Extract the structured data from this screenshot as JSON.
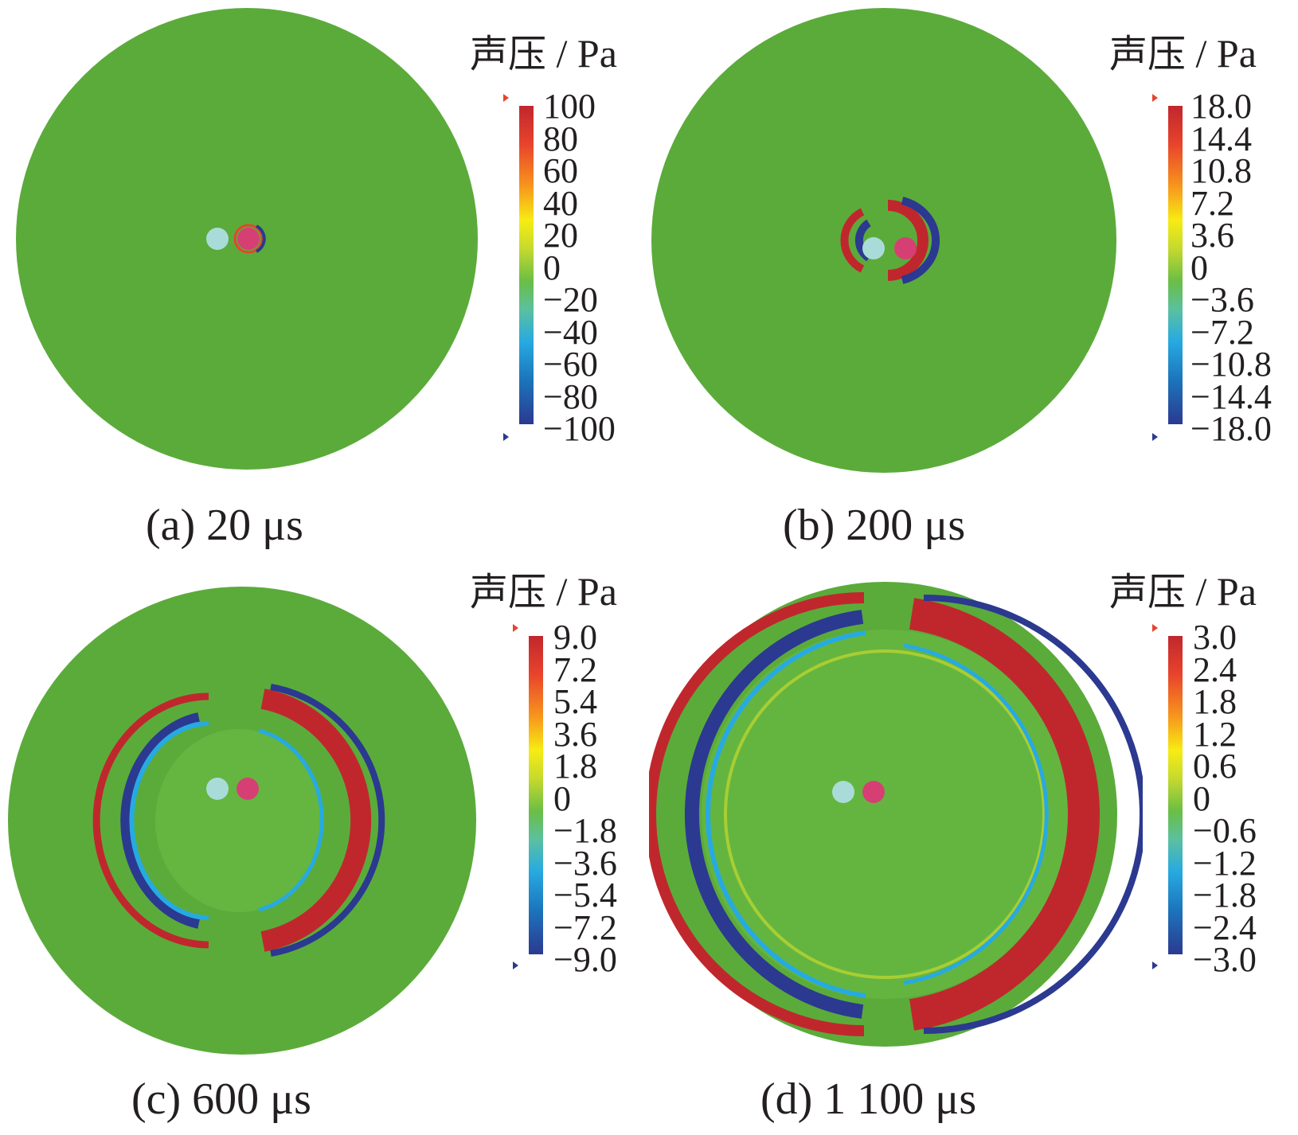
{
  "colorbar_colors": [
    "#2b3990",
    "#1c75bc",
    "#27aae1",
    "#5bc0a0",
    "#6bbe45",
    "#c4d92e",
    "#f7ec13",
    "#f7941d",
    "#e8432c",
    "#c0272d"
  ],
  "field_color": "#5bab3b",
  "source_color": "#a9dcd9",
  "receiver_color": "#d63f73",
  "panels": [
    {
      "id": "a",
      "cb_title_cn": "声压",
      "cb_title_unit": " / Pa",
      "ticks": [
        "100",
        "80",
        "60",
        "40",
        "20",
        "0",
        "−20",
        "−40",
        "−60",
        "−80",
        "−100"
      ],
      "caption": "(a)  20 μs"
    },
    {
      "id": "b",
      "cb_title_cn": "声压",
      "cb_title_unit": " / Pa",
      "ticks": [
        "18.0",
        "14.4",
        "10.8",
        "7.2",
        "3.6",
        "0",
        "−3.6",
        "−7.2",
        "−10.8",
        "−14.4",
        "−18.0"
      ],
      "caption": "(b)  200 μs"
    },
    {
      "id": "c",
      "cb_title_cn": "声压",
      "cb_title_unit": " / Pa",
      "ticks": [
        "9.0",
        "7.2",
        "5.4",
        "3.6",
        "1.8",
        "0",
        "−1.8",
        "−3.6",
        "−5.4",
        "−7.2",
        "−9.0"
      ],
      "caption": "(c)  600 μs"
    },
    {
      "id": "d",
      "cb_title_cn": "声压",
      "cb_title_unit": " / Pa",
      "ticks": [
        "3.0",
        "2.4",
        "1.8",
        "1.2",
        "0.6",
        "0",
        "−0.6",
        "−1.2",
        "−1.8",
        "−2.4",
        "−3.0"
      ],
      "caption": "(d)  1 100 μs"
    }
  ]
}
